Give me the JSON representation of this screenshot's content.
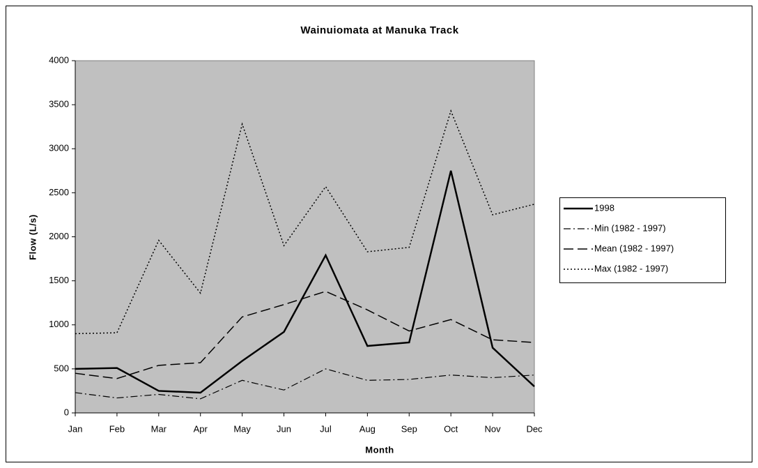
{
  "chart_data": {
    "type": "line",
    "title": "Wainuiomata at Manuka Track",
    "xlabel": "Month",
    "ylabel": "Flow (L/s)",
    "categories": [
      "Jan",
      "Feb",
      "Mar",
      "Apr",
      "May",
      "Jun",
      "Jul",
      "Aug",
      "Sep",
      "Oct",
      "Nov",
      "Dec"
    ],
    "series": [
      {
        "name": "1998",
        "color": "#000000",
        "dash": "solid",
        "width": 2.5,
        "values": [
          500,
          510,
          250,
          230,
          590,
          920,
          1790,
          760,
          800,
          2750,
          740,
          300
        ]
      },
      {
        "name": "Min (1982 - 1997)",
        "color": "#000000",
        "dash": "dash-dot",
        "width": 1.2,
        "values": [
          230,
          170,
          210,
          160,
          370,
          260,
          500,
          370,
          380,
          430,
          400,
          430
        ]
      },
      {
        "name": "Mean (1982 - 1997)",
        "color": "#000000",
        "dash": "dash",
        "width": 1.5,
        "values": [
          450,
          390,
          540,
          570,
          1090,
          1230,
          1380,
          1170,
          930,
          1060,
          830,
          800
        ]
      },
      {
        "name": "Max (1982 - 1997)",
        "color": "#000000",
        "dash": "dot",
        "width": 1.5,
        "values": [
          900,
          910,
          1960,
          1360,
          3280,
          1900,
          2570,
          1830,
          1880,
          3430,
          2250,
          2370
        ]
      }
    ],
    "ylim": [
      0,
      4000
    ],
    "yticks": [
      0,
      500,
      1000,
      1500,
      2000,
      2500,
      3000,
      3500,
      4000
    ],
    "plot_background": "#c0c0c0",
    "legend": "right"
  }
}
